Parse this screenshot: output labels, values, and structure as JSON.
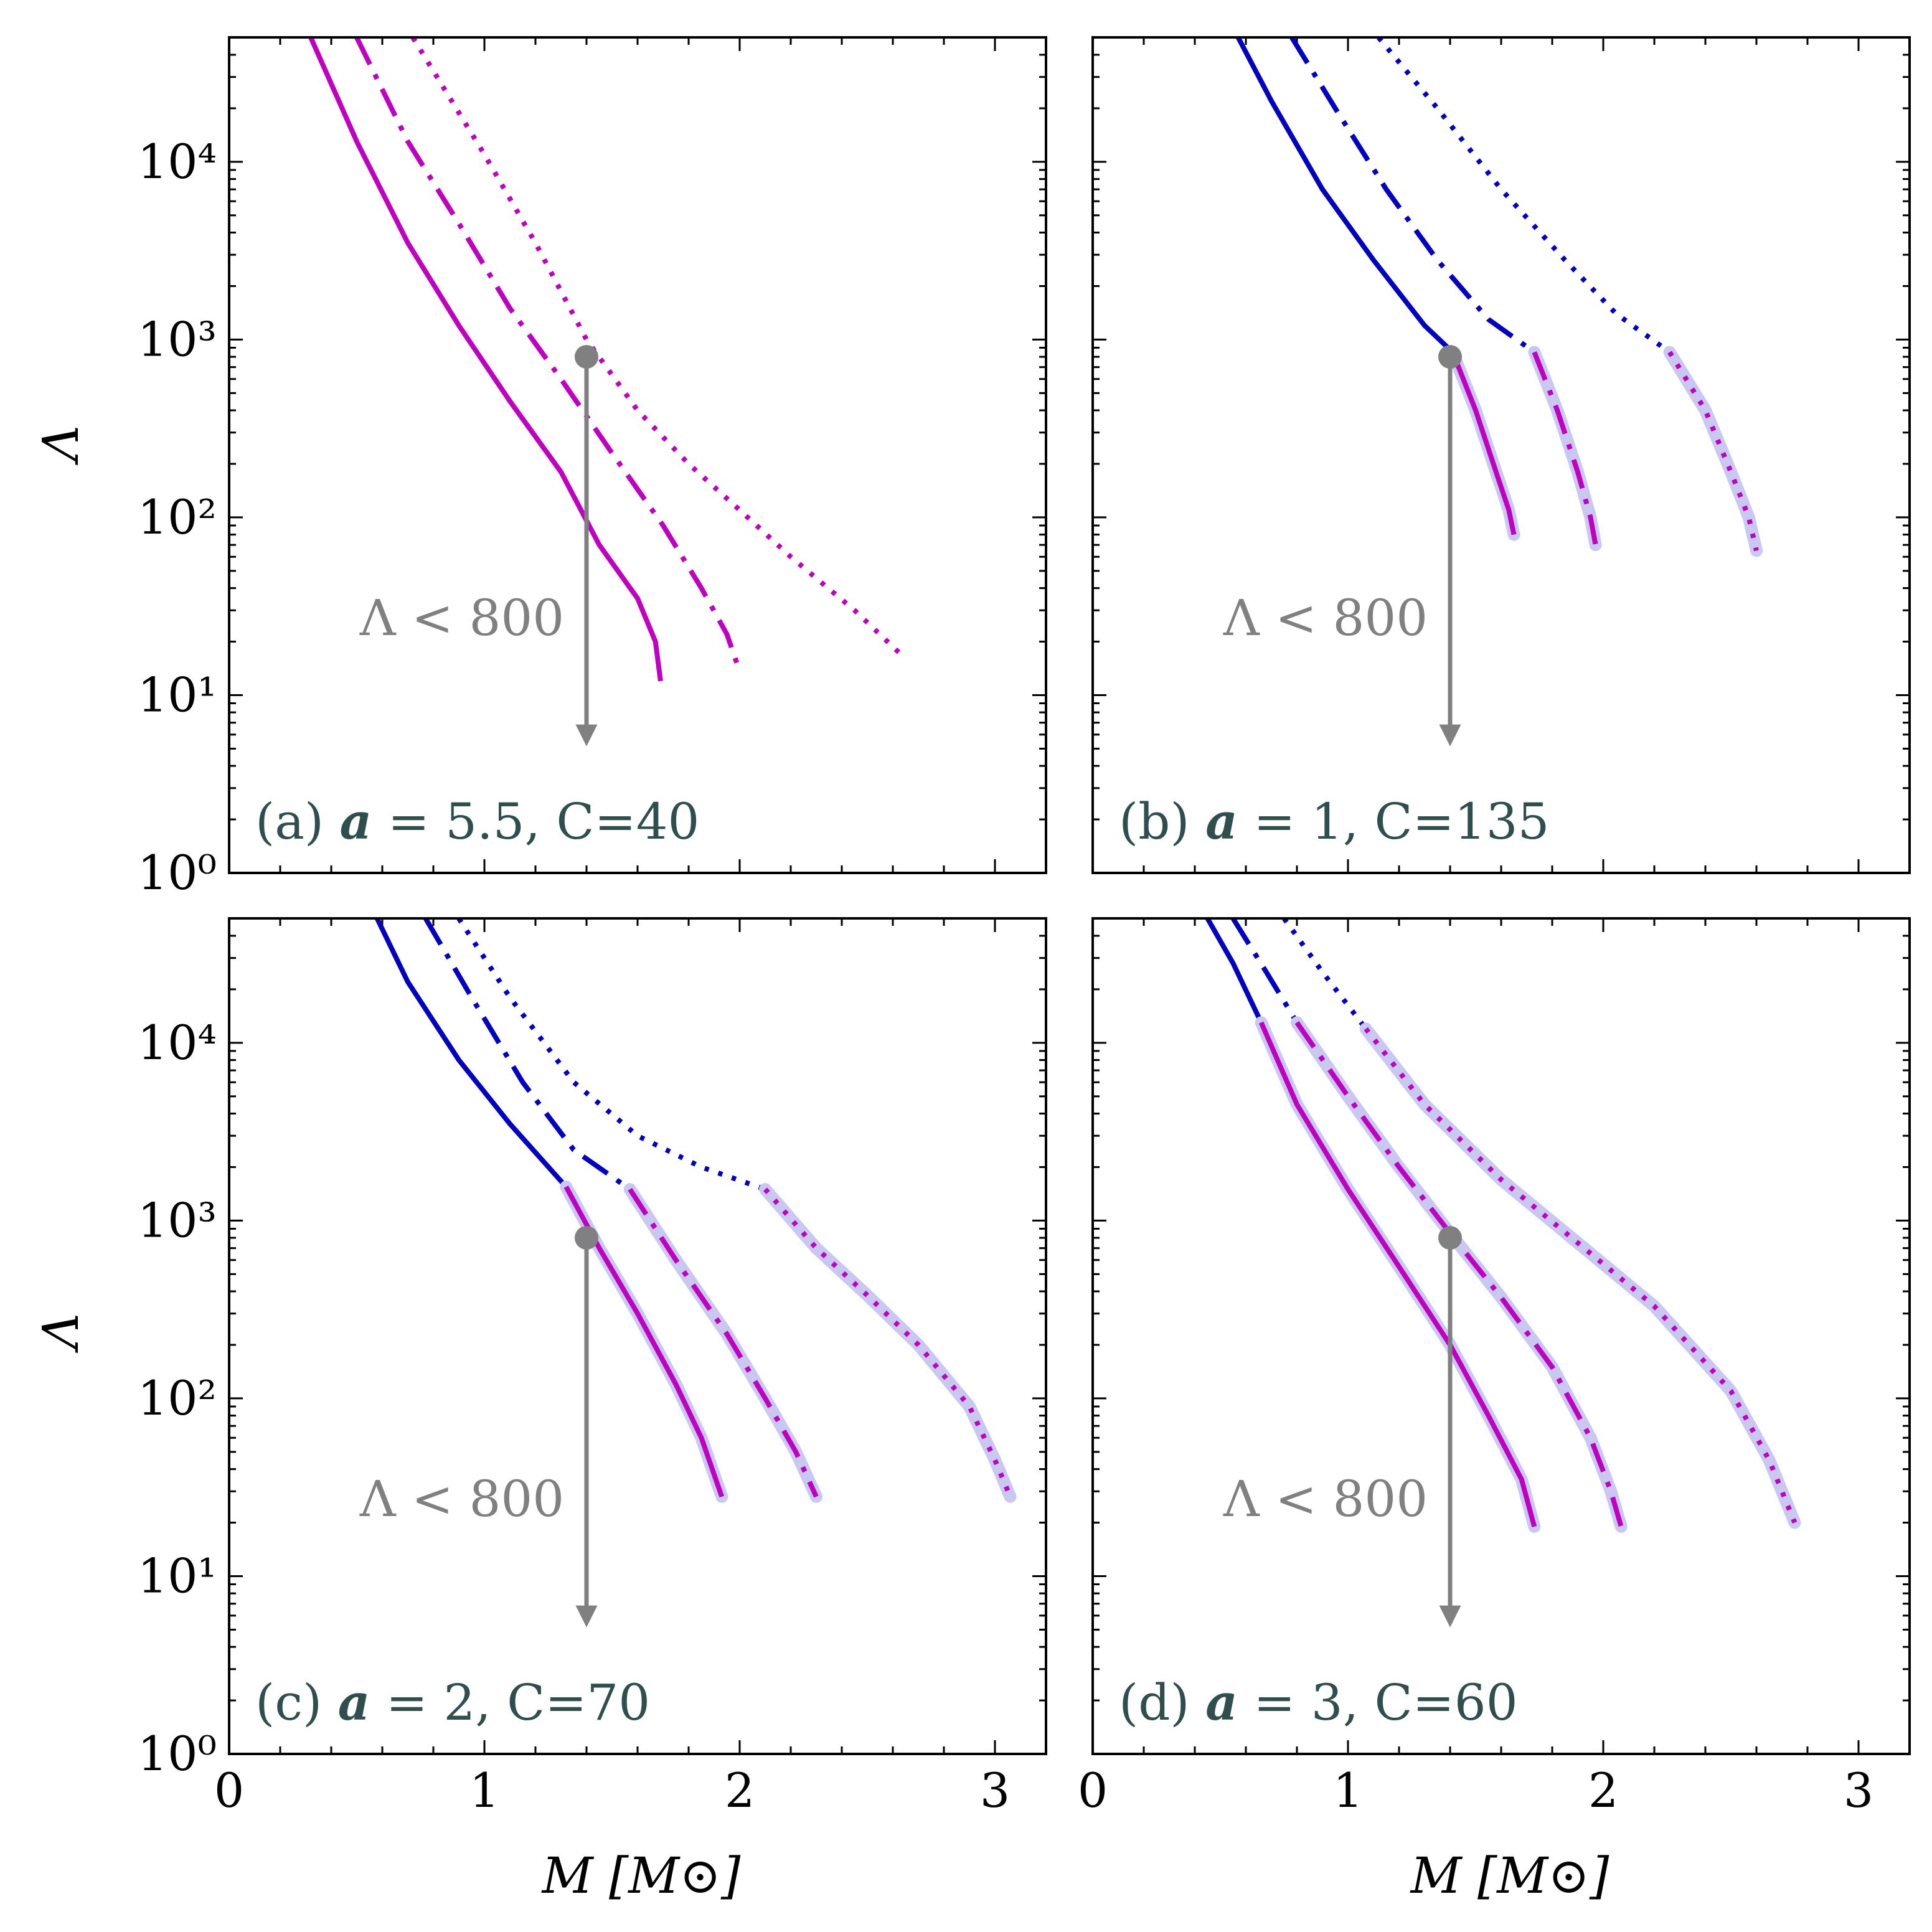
{
  "figure": {
    "xlabel": "M [M⊙]",
    "ylabel": "Λ",
    "colors": {
      "hadronic": "#0000c0",
      "quark": "#c000c0",
      "halo": "#c8c8f0",
      "marker": "#808080",
      "panel_label": "#2f4f4f"
    }
  },
  "chart_data": [
    {
      "panel": "a",
      "type": "line",
      "label_prefix": "(a)",
      "param_value": "5.5",
      "const_label": "C=40",
      "xlim": [
        0,
        3.2
      ],
      "ylim_log10": [
        0,
        4.7
      ],
      "xticks": [
        "0",
        "1",
        "2",
        "3"
      ],
      "yticks": [
        "10⁰",
        "10¹",
        "10²",
        "10³",
        "10⁴"
      ],
      "annotation": "Λ < 800",
      "constraint": {
        "M": 1.4,
        "Lambda": 800
      },
      "series": [
        {
          "name": "solid",
          "style": "solid",
          "segments": [
            {
              "phase": "quark",
              "points": [
                [
                  0.32,
                  50000
                ],
                [
                  0.5,
                  13000
                ],
                [
                  0.7,
                  3500
                ],
                [
                  0.9,
                  1200
                ],
                [
                  1.1,
                  450
                ],
                [
                  1.3,
                  180
                ],
                [
                  1.45,
                  70
                ],
                [
                  1.6,
                  35
                ],
                [
                  1.67,
                  20
                ],
                [
                  1.69,
                  12
                ]
              ]
            }
          ]
        },
        {
          "name": "dash-dot",
          "style": "dashdot",
          "segments": [
            {
              "phase": "quark",
              "points": [
                [
                  0.5,
                  50000
                ],
                [
                  0.7,
                  13000
                ],
                [
                  0.9,
                  4500
                ],
                [
                  1.1,
                  1500
                ],
                [
                  1.3,
                  600
                ],
                [
                  1.5,
                  230
                ],
                [
                  1.7,
                  90
                ],
                [
                  1.85,
                  40
                ],
                [
                  1.95,
                  22
                ],
                [
                  1.99,
                  15
                ]
              ]
            }
          ]
        },
        {
          "name": "dotted",
          "style": "dotted",
          "segments": [
            {
              "phase": "quark",
              "points": [
                [
                  0.72,
                  50000
                ],
                [
                  1.0,
                  11000
                ],
                [
                  1.2,
                  3500
                ],
                [
                  1.4,
                  1000
                ],
                [
                  1.6,
                  400
                ],
                [
                  1.8,
                  200
                ],
                [
                  2.0,
                  110
                ],
                [
                  2.2,
                  60
                ],
                [
                  2.45,
                  30
                ],
                [
                  2.65,
                  16
                ]
              ]
            }
          ]
        }
      ]
    },
    {
      "panel": "b",
      "type": "line",
      "label_prefix": "(b)",
      "param_value": "1",
      "const_label": "C=135",
      "xlim": [
        0,
        3.2
      ],
      "ylim_log10": [
        0,
        4.7
      ],
      "xticks": [
        "0",
        "1",
        "2",
        "3"
      ],
      "yticks": [
        "10⁰",
        "10¹",
        "10²",
        "10³",
        "10⁴"
      ],
      "annotation": "Λ < 800",
      "constraint": {
        "M": 1.4,
        "Lambda": 800
      },
      "series": [
        {
          "name": "solid",
          "style": "solid",
          "segments": [
            {
              "phase": "hadronic",
              "points": [
                [
                  0.57,
                  50000
                ],
                [
                  0.7,
                  22000
                ],
                [
                  0.9,
                  7000
                ],
                [
                  1.1,
                  2800
                ],
                [
                  1.3,
                  1200
                ],
                [
                  1.41,
                  850
                ]
              ]
            },
            {
              "phase": "quark",
              "points": [
                [
                  1.41,
                  850
                ],
                [
                  1.5,
                  400
                ],
                [
                  1.58,
                  180
                ],
                [
                  1.63,
                  110
                ],
                [
                  1.65,
                  80
                ]
              ]
            }
          ]
        },
        {
          "name": "dash-dot",
          "style": "dashdot",
          "segments": [
            {
              "phase": "hadronic",
              "points": [
                [
                  0.78,
                  50000
                ],
                [
                  0.95,
                  20000
                ],
                [
                  1.15,
                  7000
                ],
                [
                  1.35,
                  2800
                ],
                [
                  1.55,
                  1300
                ],
                [
                  1.73,
                  850
                ]
              ]
            },
            {
              "phase": "quark",
              "points": [
                [
                  1.73,
                  850
                ],
                [
                  1.82,
                  400
                ],
                [
                  1.9,
                  180
                ],
                [
                  1.95,
                  100
                ],
                [
                  1.97,
                  70
                ]
              ]
            }
          ]
        },
        {
          "name": "dotted",
          "style": "dotted",
          "segments": [
            {
              "phase": "hadronic",
              "points": [
                [
                  1.12,
                  50000
                ],
                [
                  1.35,
                  20000
                ],
                [
                  1.6,
                  7000
                ],
                [
                  1.85,
                  2800
                ],
                [
                  2.05,
                  1400
                ],
                [
                  2.26,
                  850
                ]
              ]
            },
            {
              "phase": "quark",
              "points": [
                [
                  2.26,
                  850
                ],
                [
                  2.4,
                  400
                ],
                [
                  2.5,
                  180
                ],
                [
                  2.57,
                  100
                ],
                [
                  2.6,
                  65
                ]
              ]
            }
          ]
        }
      ]
    },
    {
      "panel": "c",
      "type": "line",
      "label_prefix": "(c)",
      "param_value": "2",
      "const_label": "C=70",
      "xlim": [
        0,
        3.2
      ],
      "ylim_log10": [
        0,
        4.7
      ],
      "xticks": [
        "0",
        "1",
        "2",
        "3"
      ],
      "yticks": [
        "10⁰",
        "10¹",
        "10²",
        "10³",
        "10⁴"
      ],
      "annotation": "Λ < 800",
      "constraint": {
        "M": 1.4,
        "Lambda": 800
      },
      "series": [
        {
          "name": "solid",
          "style": "solid",
          "segments": [
            {
              "phase": "hadronic",
              "points": [
                [
                  0.58,
                  50000
                ],
                [
                  0.7,
                  22000
                ],
                [
                  0.9,
                  8000
                ],
                [
                  1.1,
                  3500
                ],
                [
                  1.32,
                  1550
                ]
              ]
            },
            {
              "phase": "quark",
              "points": [
                [
                  1.32,
                  1550
                ],
                [
                  1.45,
                  700
                ],
                [
                  1.6,
                  300
                ],
                [
                  1.75,
                  120
                ],
                [
                  1.85,
                  60
                ],
                [
                  1.93,
                  28
                ]
              ]
            }
          ]
        },
        {
          "name": "dash-dot",
          "style": "dashdot",
          "segments": [
            {
              "phase": "hadronic",
              "points": [
                [
                  0.77,
                  50000
                ],
                [
                  0.95,
                  18000
                ],
                [
                  1.15,
                  6000
                ],
                [
                  1.35,
                  2500
                ],
                [
                  1.57,
                  1500
                ]
              ]
            },
            {
              "phase": "quark",
              "points": [
                [
                  1.57,
                  1500
                ],
                [
                  1.75,
                  600
                ],
                [
                  1.95,
                  230
                ],
                [
                  2.1,
                  100
                ],
                [
                  2.22,
                  50
                ],
                [
                  2.3,
                  28
                ]
              ]
            }
          ]
        },
        {
          "name": "dotted",
          "style": "dotted",
          "segments": [
            {
              "phase": "hadronic",
              "points": [
                [
                  0.9,
                  50000
                ],
                [
                  1.1,
                  18000
                ],
                [
                  1.35,
                  6000
                ],
                [
                  1.6,
                  3000
                ],
                [
                  1.85,
                  2000
                ],
                [
                  2.1,
                  1500
                ]
              ]
            },
            {
              "phase": "quark",
              "points": [
                [
                  2.1,
                  1500
                ],
                [
                  2.3,
                  700
                ],
                [
                  2.5,
                  380
                ],
                [
                  2.7,
                  200
                ],
                [
                  2.9,
                  90
                ],
                [
                  3.0,
                  45
                ],
                [
                  3.06,
                  28
                ]
              ]
            }
          ]
        }
      ]
    },
    {
      "panel": "d",
      "type": "line",
      "label_prefix": "(d)",
      "param_value": "3",
      "const_label": "C=60",
      "xlim": [
        0,
        3.2
      ],
      "ylim_log10": [
        0,
        4.7
      ],
      "xticks": [
        "0",
        "1",
        "2",
        "3"
      ],
      "yticks": [
        "10⁰",
        "10¹",
        "10²",
        "10³",
        "10⁴"
      ],
      "annotation": "Λ < 800",
      "constraint": {
        "M": 1.4,
        "Lambda": 800
      },
      "series": [
        {
          "name": "solid",
          "style": "solid",
          "segments": [
            {
              "phase": "hadronic",
              "points": [
                [
                  0.45,
                  50000
                ],
                [
                  0.55,
                  28000
                ],
                [
                  0.66,
                  13000
                ]
              ]
            },
            {
              "phase": "quark",
              "points": [
                [
                  0.66,
                  13000
                ],
                [
                  0.8,
                  4500
                ],
                [
                  1.0,
                  1500
                ],
                [
                  1.2,
                  550
                ],
                [
                  1.4,
                  200
                ],
                [
                  1.55,
                  80
                ],
                [
                  1.68,
                  35
                ],
                [
                  1.73,
                  19
                ]
              ]
            }
          ]
        },
        {
          "name": "dash-dot",
          "style": "dashdot",
          "segments": [
            {
              "phase": "hadronic",
              "points": [
                [
                  0.55,
                  50000
                ],
                [
                  0.68,
                  25000
                ],
                [
                  0.8,
                  13000
                ]
              ]
            },
            {
              "phase": "quark",
              "points": [
                [
                  0.8,
                  13000
                ],
                [
                  1.0,
                  5000
                ],
                [
                  1.2,
                  2000
                ],
                [
                  1.4,
                  850
                ],
                [
                  1.6,
                  370
                ],
                [
                  1.8,
                  150
                ],
                [
                  1.95,
                  60
                ],
                [
                  2.03,
                  30
                ],
                [
                  2.07,
                  19
                ]
              ]
            }
          ]
        },
        {
          "name": "dotted",
          "style": "dotted",
          "segments": [
            {
              "phase": "hadronic",
              "points": [
                [
                  0.75,
                  50000
                ],
                [
                  0.9,
                  25000
                ],
                [
                  1.07,
                  12000
                ]
              ]
            },
            {
              "phase": "quark",
              "points": [
                [
                  1.07,
                  12000
                ],
                [
                  1.3,
                  4500
                ],
                [
                  1.6,
                  1700
                ],
                [
                  1.9,
                  750
                ],
                [
                  2.2,
                  330
                ],
                [
                  2.5,
                  110
                ],
                [
                  2.65,
                  45
                ],
                [
                  2.75,
                  20
                ]
              ]
            }
          ]
        }
      ]
    }
  ]
}
